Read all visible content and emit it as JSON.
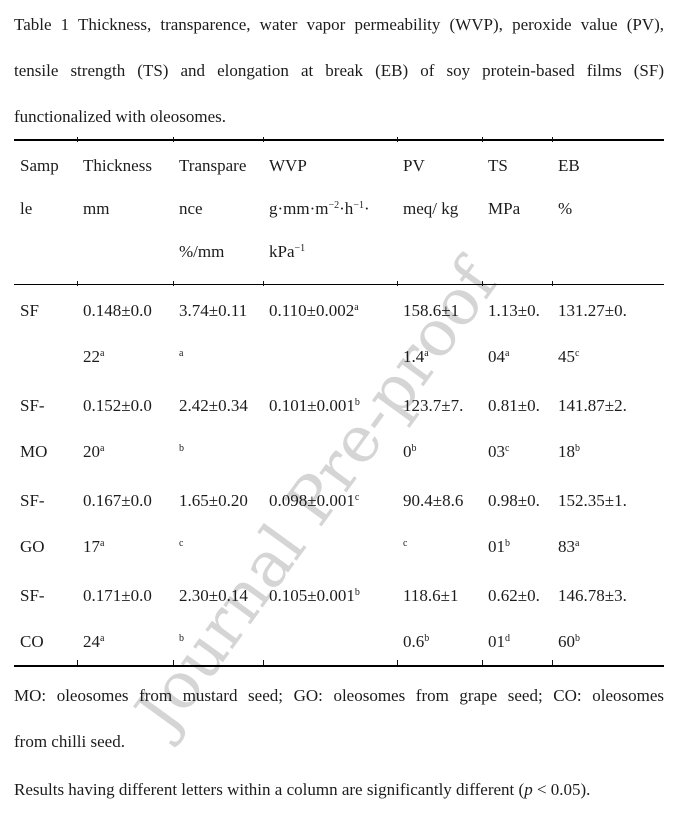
{
  "watermark": {
    "text": "Journal Pre-proof"
  },
  "colors": {
    "watermark": "#d5d5d5",
    "text": "#1c1c1c",
    "rule": "#000000",
    "background": "#ffffff"
  },
  "caption": {
    "lines": [
      "Table 1 Thickness, transparence, water vapor permeability (WVP), peroxide value (PV),",
      "tensile strength (TS) and elongation at break (EB) of soy protein-based films (SF)",
      "functionalized with oleosomes."
    ]
  },
  "table": {
    "header": [
      {
        "lines": [
          "Samp",
          "le"
        ]
      },
      {
        "lines": [
          "Thickness",
          "mm"
        ]
      },
      {
        "lines": [
          "Transpare",
          "nce",
          "%/mm"
        ]
      },
      {
        "lines": [
          "WVP",
          [
            {
              "t": "g·mm·m"
            },
            {
              "t": "−2",
              "s": 1
            },
            {
              "t": "·h"
            },
            {
              "t": "−1",
              "s": 1
            },
            {
              "t": "·"
            }
          ],
          [
            {
              "t": "kPa"
            },
            {
              "t": "−1",
              "s": 1
            }
          ]
        ]
      },
      {
        "lines": [
          "PV",
          "meq/ kg"
        ]
      },
      {
        "lines": [
          "TS",
          "MPa"
        ]
      },
      {
        "lines": [
          "EB",
          "%"
        ]
      }
    ],
    "rows": [
      [
        {
          "lines": [
            "SF"
          ]
        },
        {
          "lines": [
            "0.148±0.0",
            [
              {
                "t": "22"
              },
              {
                "t": "a",
                "s": 1
              }
            ]
          ]
        },
        {
          "lines": [
            "3.74±0.11",
            [
              {
                "t": "a",
                "s": 1
              }
            ]
          ]
        },
        {
          "lines": [
            [
              {
                "t": "0.110±0.002"
              },
              {
                "t": "a",
                "s": 1
              }
            ]
          ]
        },
        {
          "lines": [
            "158.6±1",
            [
              {
                "t": "1.4"
              },
              {
                "t": "a",
                "s": 1
              }
            ]
          ]
        },
        {
          "lines": [
            "1.13±0.",
            [
              {
                "t": "04"
              },
              {
                "t": "a",
                "s": 1
              }
            ]
          ]
        },
        {
          "lines": [
            "131.27±0.",
            [
              {
                "t": "45"
              },
              {
                "t": "c",
                "s": 1
              }
            ]
          ]
        }
      ],
      [
        {
          "lines": [
            "SF-",
            "MO"
          ]
        },
        {
          "lines": [
            "0.152±0.0",
            [
              {
                "t": "20"
              },
              {
                "t": "a",
                "s": 1
              }
            ]
          ]
        },
        {
          "lines": [
            "2.42±0.34",
            [
              {
                "t": "b",
                "s": 1
              }
            ]
          ]
        },
        {
          "lines": [
            [
              {
                "t": "0.101±0.001"
              },
              {
                "t": "b",
                "s": 1
              }
            ]
          ]
        },
        {
          "lines": [
            "123.7±7.",
            [
              {
                "t": "0"
              },
              {
                "t": "b",
                "s": 1
              }
            ]
          ]
        },
        {
          "lines": [
            "0.81±0.",
            [
              {
                "t": "03"
              },
              {
                "t": "c",
                "s": 1
              }
            ]
          ]
        },
        {
          "lines": [
            "141.87±2.",
            [
              {
                "t": "18"
              },
              {
                "t": "b",
                "s": 1
              }
            ]
          ]
        }
      ],
      [
        {
          "lines": [
            "SF-",
            "GO"
          ]
        },
        {
          "lines": [
            "0.167±0.0",
            [
              {
                "t": "17"
              },
              {
                "t": "a",
                "s": 1
              }
            ]
          ]
        },
        {
          "lines": [
            "1.65±0.20",
            [
              {
                "t": "c",
                "s": 1
              }
            ]
          ]
        },
        {
          "lines": [
            [
              {
                "t": "0.098±0.001"
              },
              {
                "t": "c",
                "s": 1
              }
            ]
          ]
        },
        {
          "lines": [
            "90.4±8.6",
            [
              {
                "t": "c",
                "s": 1
              }
            ]
          ]
        },
        {
          "lines": [
            "0.98±0.",
            [
              {
                "t": "01"
              },
              {
                "t": "b",
                "s": 1
              }
            ]
          ]
        },
        {
          "lines": [
            "152.35±1.",
            [
              {
                "t": "83"
              },
              {
                "t": "a",
                "s": 1
              }
            ]
          ]
        }
      ],
      [
        {
          "lines": [
            "SF-",
            "CO"
          ]
        },
        {
          "lines": [
            "0.171±0.0",
            [
              {
                "t": "24"
              },
              {
                "t": "a",
                "s": 1
              }
            ]
          ]
        },
        {
          "lines": [
            "2.30±0.14",
            [
              {
                "t": "b",
                "s": 1
              }
            ]
          ]
        },
        {
          "lines": [
            [
              {
                "t": "0.105±0.001"
              },
              {
                "t": "b",
                "s": 1
              }
            ]
          ]
        },
        {
          "lines": [
            "118.6±1",
            [
              {
                "t": "0.6"
              },
              {
                "t": "b",
                "s": 1
              }
            ]
          ]
        },
        {
          "lines": [
            "0.62±0.",
            [
              {
                "t": "01"
              },
              {
                "t": "d",
                "s": 1
              }
            ]
          ]
        },
        {
          "lines": [
            "146.78±3.",
            [
              {
                "t": "60"
              },
              {
                "t": "b",
                "s": 1
              }
            ]
          ]
        }
      ]
    ]
  },
  "footnotes": {
    "note1_lines": [
      "MO: oleosomes from mustard seed; GO: oleosomes from grape seed; CO: oleosomes",
      "from chilli seed."
    ],
    "note2": {
      "pre": "Results having different letters within a column are significantly different (",
      "italic": "p",
      "post": " < 0.05)."
    }
  }
}
